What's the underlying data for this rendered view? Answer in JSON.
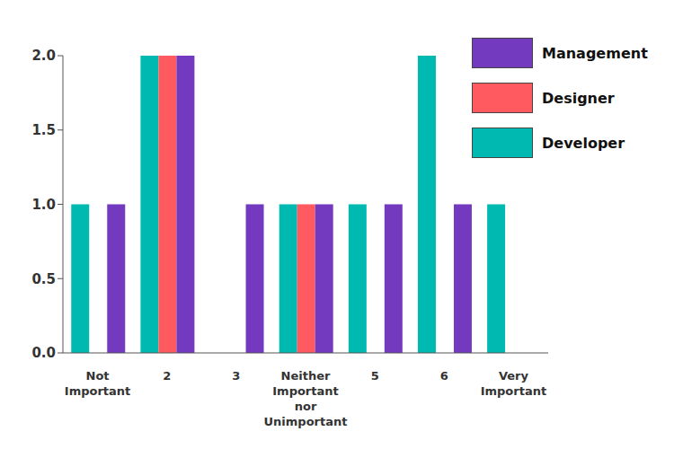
{
  "chart_data": {
    "type": "bar",
    "categories": [
      "Not Important",
      "2",
      "3",
      "Neither Important nor Unimportant",
      "5",
      "6",
      "Very Important"
    ],
    "series": [
      {
        "name": "Management",
        "color": "#7339bf",
        "values": [
          1,
          2,
          1,
          1,
          1,
          1,
          0
        ]
      },
      {
        "name": "Designer",
        "color": "#ff5a5f",
        "values": [
          0,
          2,
          0,
          1,
          0,
          0,
          0
        ]
      },
      {
        "name": "Developer",
        "color": "#00b9b0",
        "values": [
          1,
          2,
          0,
          1,
          1,
          2,
          1
        ]
      }
    ],
    "ylim": [
      0,
      2
    ],
    "yticks": [
      {
        "value": 0,
        "label": "0.0"
      },
      {
        "value": 0.5,
        "label": "0.5"
      },
      {
        "value": 1,
        "label": "1.0"
      },
      {
        "value": 1.5,
        "label": "1.5"
      },
      {
        "value": 2,
        "label": "2.0"
      }
    ],
    "grid": false,
    "legend": "upper right"
  }
}
